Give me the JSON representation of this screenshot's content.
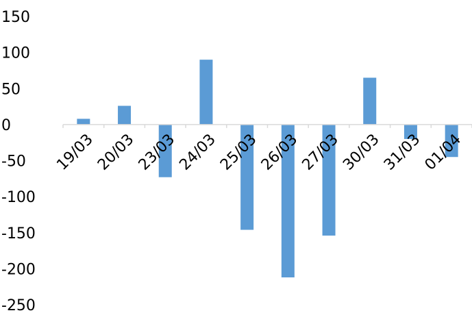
{
  "chart_data": {
    "type": "bar",
    "title": "",
    "xlabel": "",
    "ylabel": "",
    "categories": [
      "19/03",
      "20/03",
      "23/03",
      "24/03",
      "25/03",
      "26/03",
      "27/03",
      "30/03",
      "31/03",
      "01/04"
    ],
    "values": [
      8,
      26,
      -73,
      90,
      -146,
      -212,
      -154,
      65,
      -20,
      -45
    ],
    "ylim": [
      -250,
      150
    ],
    "yticks": [
      "150",
      "100",
      "50",
      "0",
      "-50",
      "-100",
      "-150",
      "-200",
      "-250"
    ],
    "grid": false,
    "legend": "none",
    "bar_color": "#5b9bd5",
    "axis_color": "#d9d9d9"
  }
}
